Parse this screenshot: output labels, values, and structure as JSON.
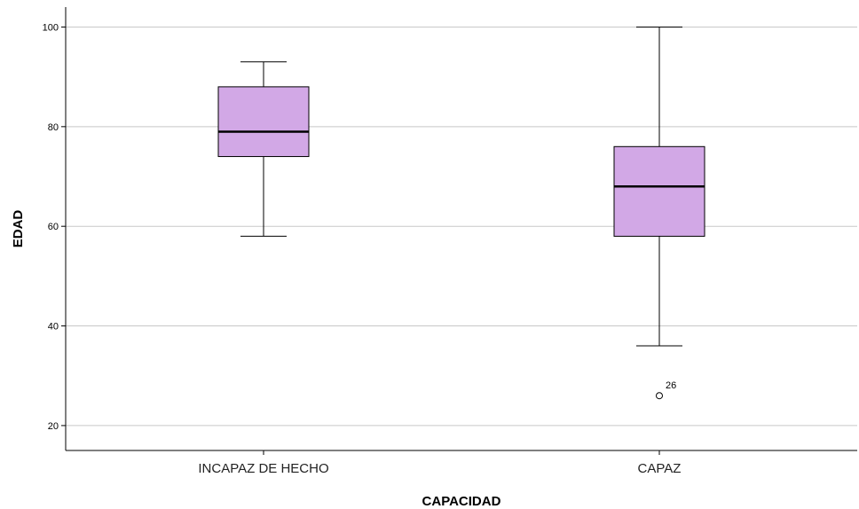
{
  "chart_data": {
    "type": "boxplot",
    "title": "",
    "xlabel": "CAPACIDAD",
    "ylabel": "EDAD",
    "ylim": [
      15,
      104
    ],
    "yticks": [
      20,
      40,
      60,
      80,
      100
    ],
    "grid": true,
    "categories": [
      "INCAPAZ DE HECHO",
      "CAPAZ"
    ],
    "boxes": [
      {
        "category": "INCAPAZ DE HECHO",
        "whisker_low": 58,
        "q1": 74,
        "median": 79,
        "q3": 88,
        "whisker_high": 93,
        "outliers": []
      },
      {
        "category": "CAPAZ",
        "whisker_low": 36,
        "q1": 58,
        "median": 68,
        "q3": 76,
        "whisker_high": 100,
        "outliers": [
          {
            "value": 26,
            "label": "26"
          }
        ]
      }
    ],
    "box_color": "#d2a8e6",
    "line_color": "#000000",
    "grid_color": "#c8c8c8"
  }
}
